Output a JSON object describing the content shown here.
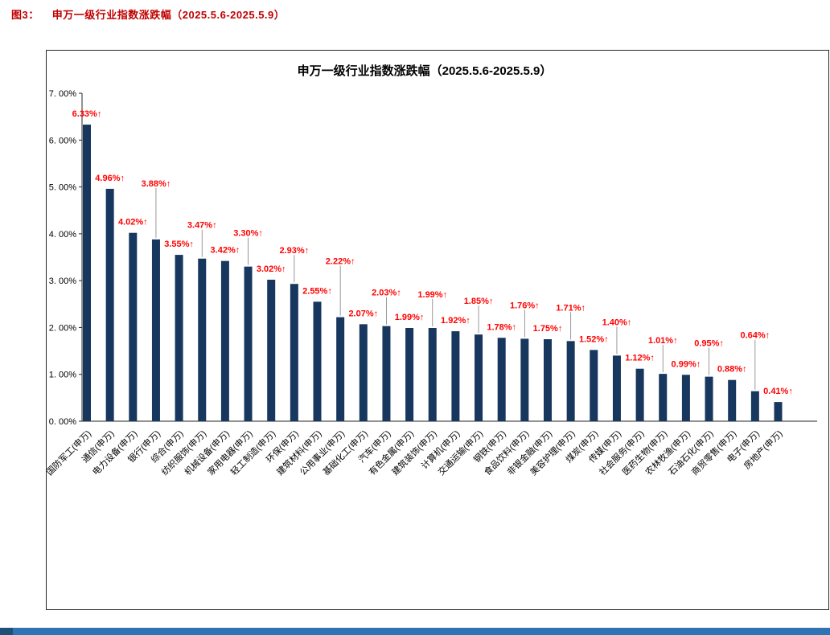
{
  "page": {
    "caption_prefix": "图3：",
    "caption_title": "申万一级行业指数涨跌幅（2025.5.6-2025.5.9）",
    "caption_color": "#C00000"
  },
  "chart_data": {
    "type": "bar",
    "title": "申万一级行业指数涨跌幅（2025.5.6-2025.5.9）",
    "categories": [
      "国防军工(申万)",
      "通信(申万)",
      "电力设备(申万)",
      "银行(申万)",
      "综合(申万)",
      "纺织服饰(申万)",
      "机械设备(申万)",
      "家用电器(申万)",
      "轻工制造(申万)",
      "环保(申万)",
      "建筑材料(申万)",
      "公用事业(申万)",
      "基础化工(申万)",
      "汽车(申万)",
      "有色金属(申万)",
      "建筑装饰(申万)",
      "计算机(申万)",
      "交通运输(申万)",
      "钢铁(申万)",
      "食品饮料(申万)",
      "非银金融(申万)",
      "美容护理(申万)",
      "煤炭(申万)",
      "传媒(申万)",
      "社会服务(申万)",
      "医药生物(申万)",
      "农林牧渔(申万)",
      "石油石化(申万)",
      "商贸零售(申万)",
      "电子(申万)",
      "房地产(申万)"
    ],
    "values": [
      6.33,
      4.96,
      4.02,
      3.88,
      3.55,
      3.47,
      3.42,
      3.3,
      3.02,
      2.93,
      2.55,
      2.22,
      2.07,
      2.03,
      1.99,
      1.99,
      1.92,
      1.85,
      1.78,
      1.76,
      1.75,
      1.71,
      1.52,
      1.4,
      1.12,
      1.01,
      0.99,
      0.95,
      0.88,
      0.64,
      0.41
    ],
    "labels": [
      "6.33%↑",
      "4.96%↑",
      "4.02%↑",
      "3.88%↑",
      "3.55%↑",
      "3.47%↑",
      "3.42%↑",
      "3.30%↑",
      "3.02%↑",
      "2.93%↑",
      "2.55%↑",
      "2.22%↑",
      "2.07%↑",
      "2.03%↑",
      "1.99%↑",
      "1.99%↑",
      "1.92%↑",
      "1.85%↑",
      "1.78%↑",
      "1.76%↑",
      "1.75%↑",
      "1.71%↑",
      "1.52%↑",
      "1.40%↑",
      "1.12%↑",
      "1.01%↑",
      "0.99%↑",
      "0.95%↑",
      "0.88%↑",
      "0.64%↑",
      "0.41%↑"
    ],
    "xlabel": "",
    "ylabel": "",
    "ylim": [
      0,
      7
    ],
    "ytick_labels": [
      "0. 00%",
      "1. 00%",
      "2. 00%",
      "3. 00%",
      "4. 00%",
      "5. 00%",
      "6. 00%",
      "7. 00%"
    ],
    "grid": false,
    "legend": "none",
    "bar_color": "#17375E",
    "label_color": "#FF0000",
    "axis_color": "#262626",
    "leader_line_color": "#7F7F7F"
  },
  "footer": {
    "bar_color": "#2E74B5",
    "square_color": "#1F4E79"
  }
}
